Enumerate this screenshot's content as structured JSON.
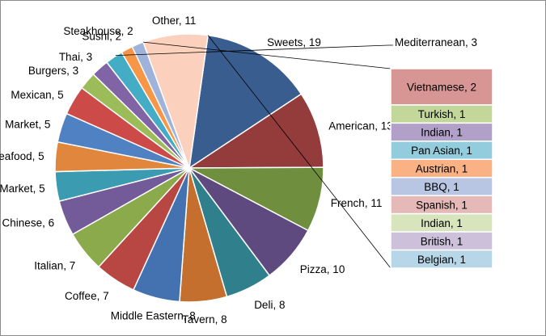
{
  "chart_data": {
    "type": "pie",
    "subtype": "bar-of-pie",
    "title": "",
    "legend": "none",
    "slices": [
      {
        "label": "Sweets",
        "value": 19,
        "color": "#3a5d8f"
      },
      {
        "label": "American",
        "value": 13,
        "color": "#943b3b"
      },
      {
        "label": "French",
        "value": 11,
        "color": "#6f8f3e"
      },
      {
        "label": "Pizza",
        "value": 10,
        "color": "#5e4a7e"
      },
      {
        "label": "Deli",
        "value": 8,
        "color": "#2f7f8c"
      },
      {
        "label": "Tavern",
        "value": 8,
        "color": "#c46f2e"
      },
      {
        "label": "Middle Eastern",
        "value": 8,
        "color": "#4472b1"
      },
      {
        "label": "Coffee",
        "value": 7,
        "color": "#b84744"
      },
      {
        "label": "Italian",
        "value": 7,
        "color": "#8aaa4b"
      },
      {
        "label": "Chinese",
        "value": 6,
        "color": "#735a98"
      },
      {
        "label": "Market",
        "value": 5,
        "color": "#3a9bb1"
      },
      {
        "label": "Seafood",
        "value": 5,
        "color": "#e0873d"
      },
      {
        "label": "Market",
        "value": 5,
        "color": "#4f81c3"
      },
      {
        "label": "Mexican",
        "value": 5,
        "color": "#cc4a48"
      },
      {
        "label": "Burgers",
        "value": 3,
        "color": "#9bbc59"
      },
      {
        "label": "Thai",
        "value": 3,
        "color": "#8064a6"
      },
      {
        "label": "Mediterranean",
        "value": 3,
        "color": "#45acc6"
      },
      {
        "label": "Sushi",
        "value": 2,
        "color": "#f79646"
      },
      {
        "label": "Steakhouse",
        "value": 2,
        "color": "#9fb2d9"
      },
      {
        "label": "Other",
        "value": 11,
        "color": "#fbd0bd"
      }
    ],
    "other_breakdown": [
      {
        "label": "Vietnamese",
        "value": 2,
        "color": "#d79593"
      },
      {
        "label": "Turkish",
        "value": 1,
        "color": "#c4d79b"
      },
      {
        "label": "Indian",
        "value": 1,
        "color": "#b1a0c7"
      },
      {
        "label": "Pan Asian",
        "value": 1,
        "color": "#93cddd"
      },
      {
        "label": "Austrian",
        "value": 1,
        "color": "#fab183"
      },
      {
        "label": "BBQ",
        "value": 1,
        "color": "#b8c6e3"
      },
      {
        "label": "Spanish",
        "value": 1,
        "color": "#e5b9b7"
      },
      {
        "label": "Indian",
        "value": 1,
        "color": "#d8e4bc"
      },
      {
        "label": "British",
        "value": 1,
        "color": "#ccc0da"
      },
      {
        "label": "Belgian",
        "value": 1,
        "color": "#b7d7e8"
      }
    ]
  }
}
